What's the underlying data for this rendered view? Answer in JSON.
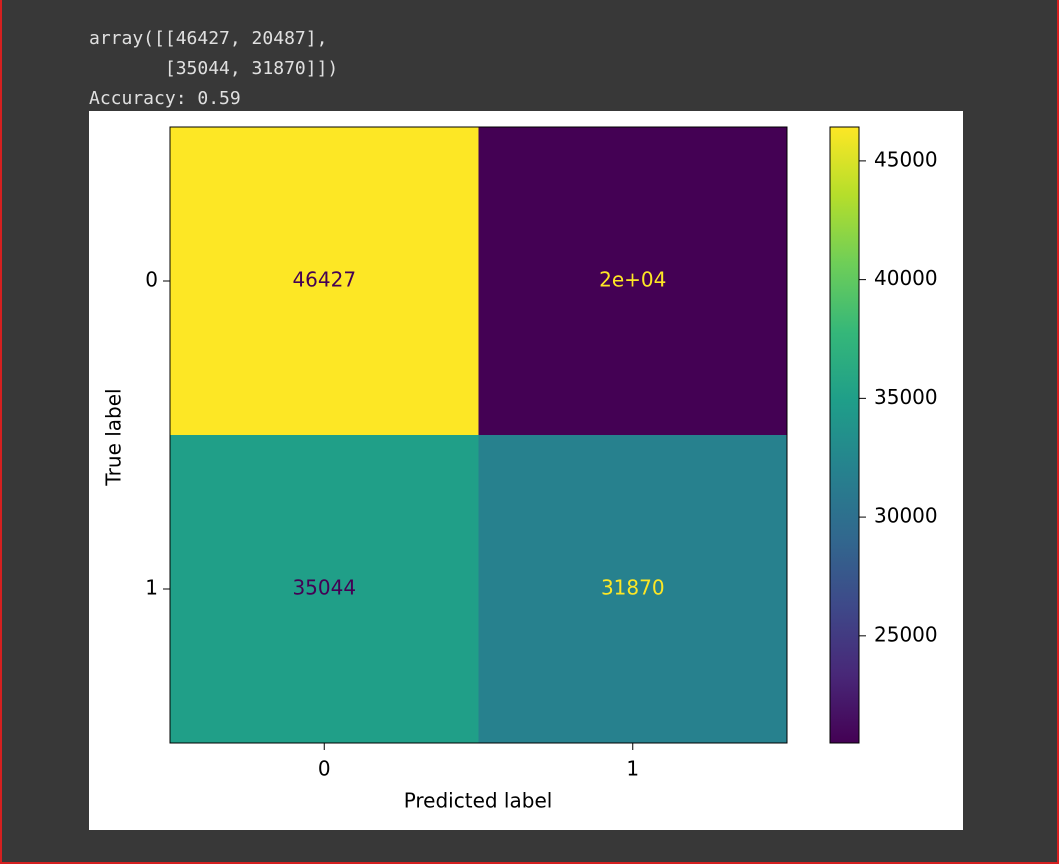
{
  "output": {
    "lines": [
      "array([[46427, 20487],",
      "       [35044, 31870]])",
      "Accuracy: 0.59"
    ]
  },
  "chart_data": {
    "type": "heatmap",
    "x_label": "Predicted label",
    "y_label": "True label",
    "x_categories": [
      "0",
      "1"
    ],
    "y_categories": [
      "0",
      "1"
    ],
    "values": [
      [
        46427,
        20487
      ],
      [
        35044,
        31870
      ]
    ],
    "value_labels": [
      [
        "46427",
        "2e+04"
      ],
      [
        "35044",
        "31870"
      ]
    ],
    "colormap": "viridis",
    "clim": [
      20487,
      46427
    ],
    "cticks": [
      25000,
      30000,
      35000,
      40000,
      45000
    ]
  }
}
